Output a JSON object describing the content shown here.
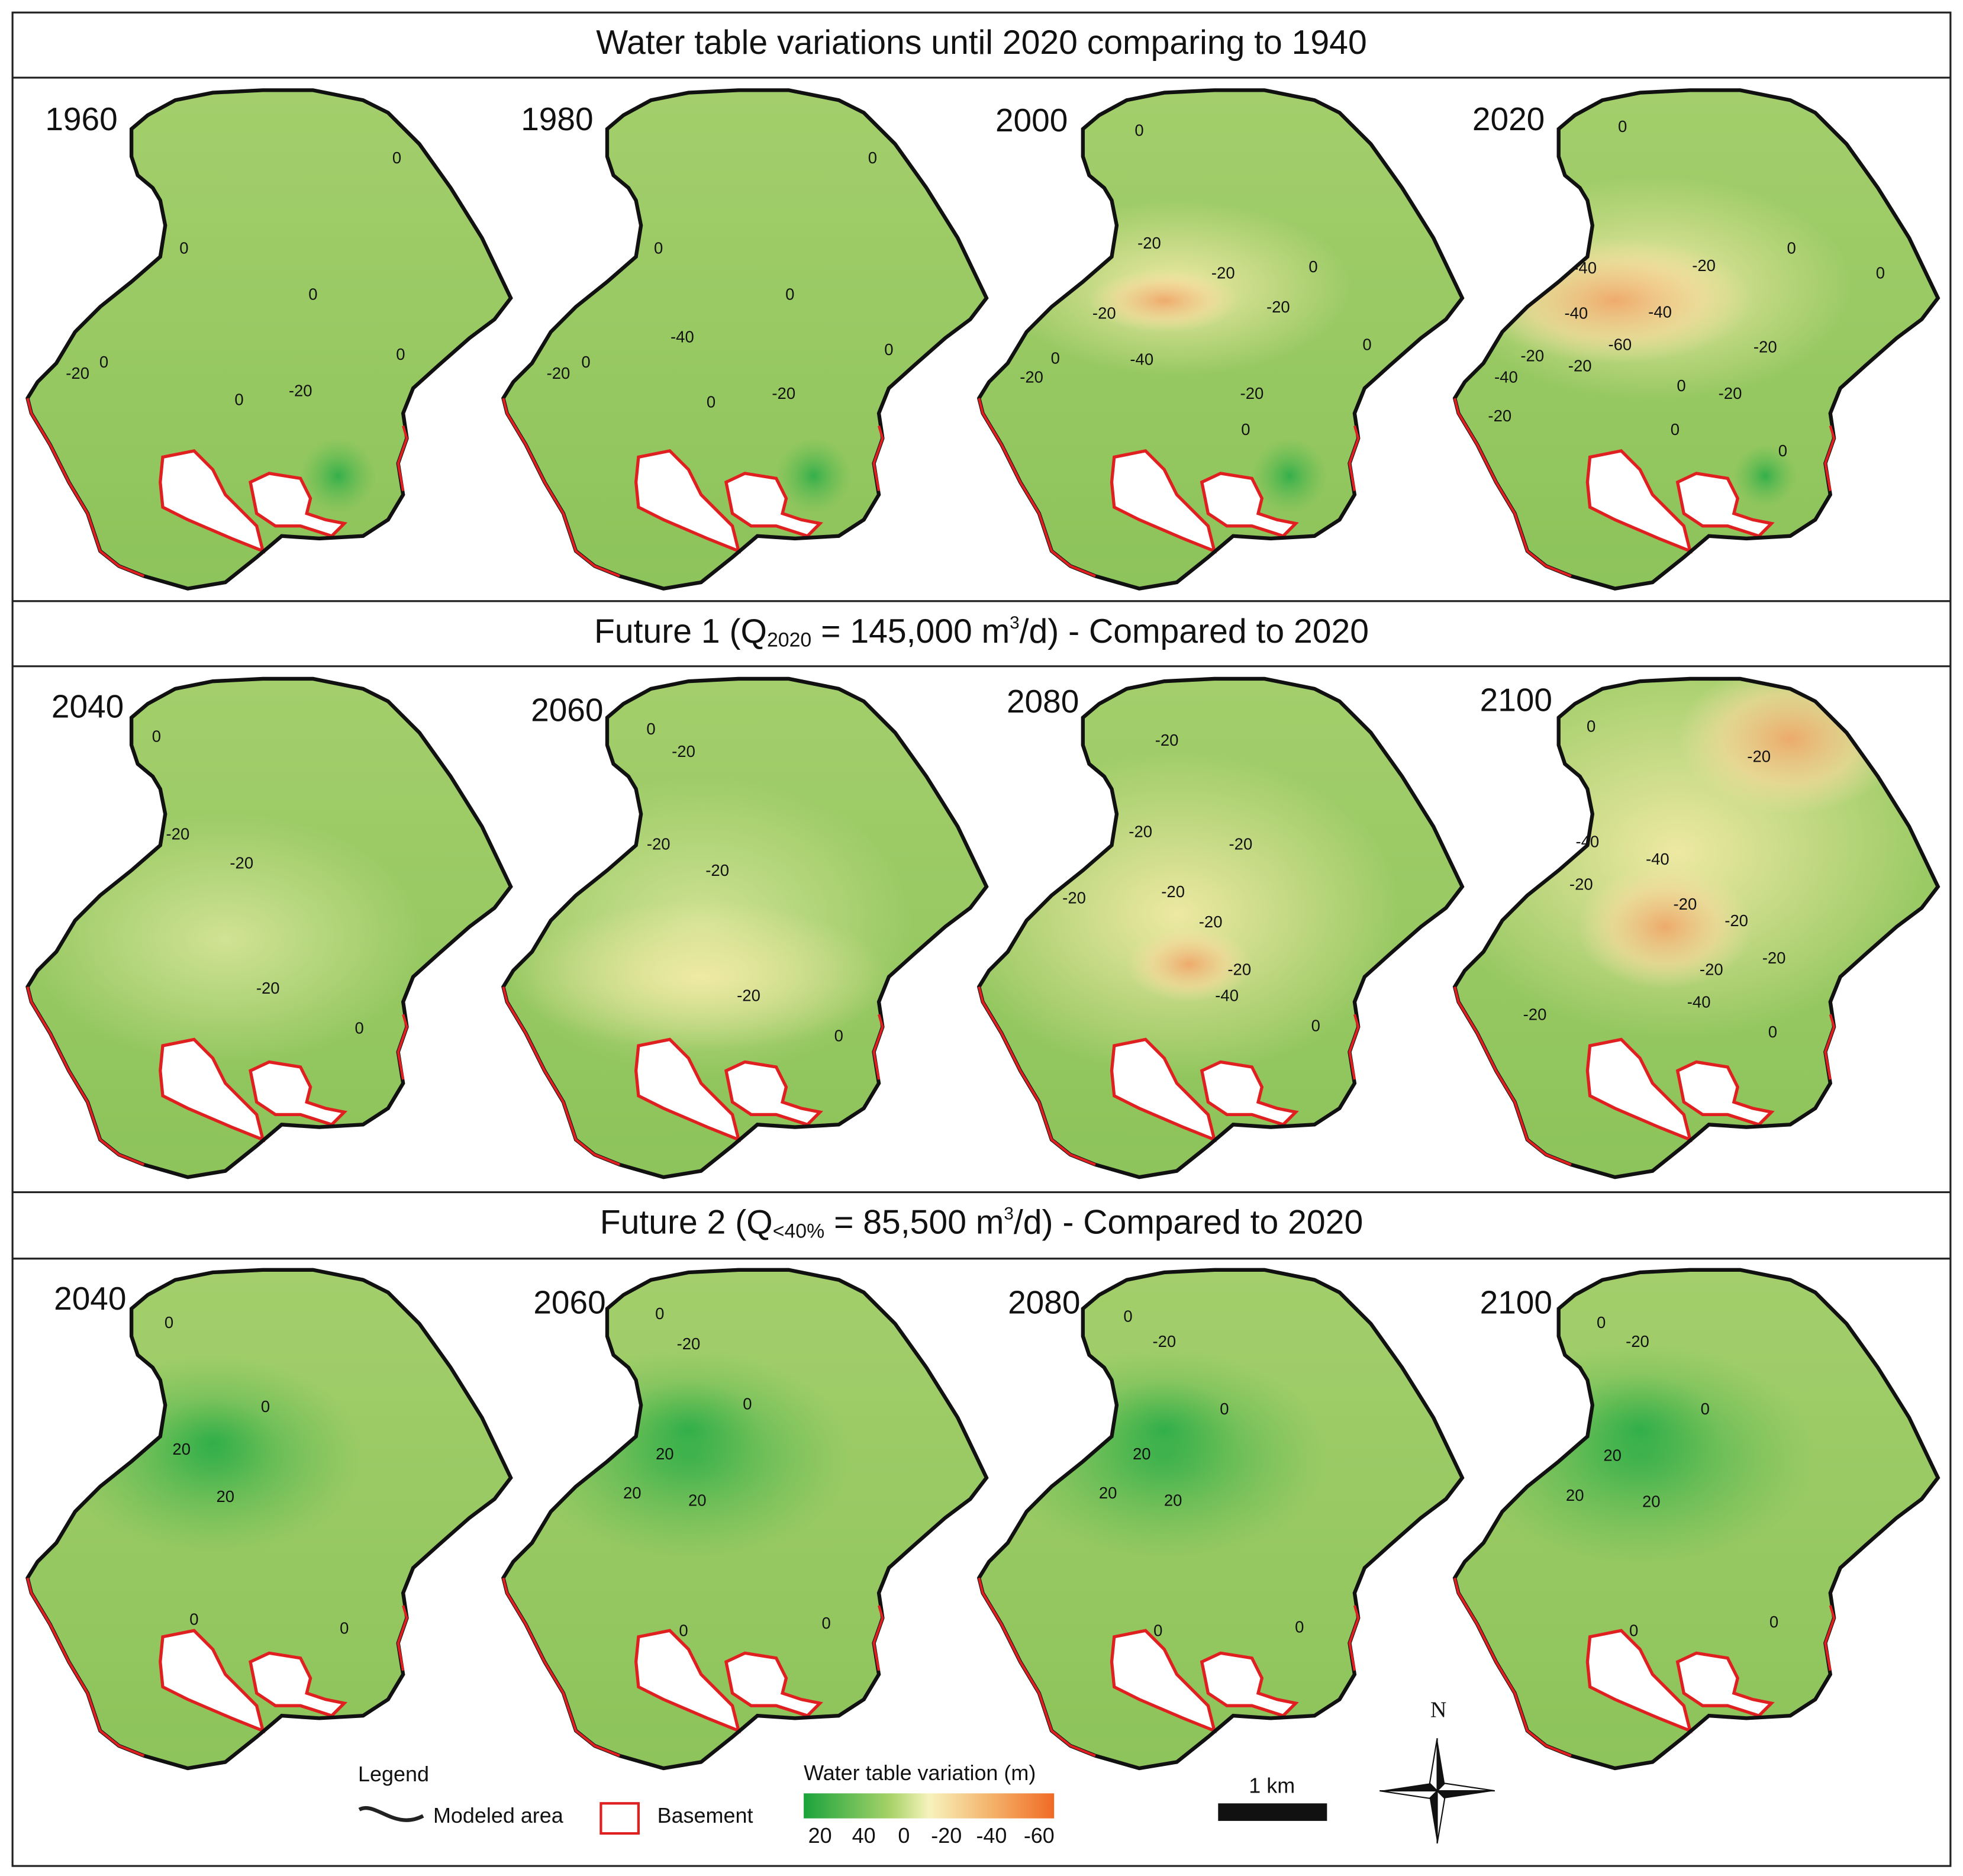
{
  "sections": [
    {
      "title": [
        "Water table variations until 2020 comparing to 1940"
      ],
      "panels": [
        {
          "year": "1960",
          "contours": [
            0,
            0,
            0,
            0,
            -20,
            0,
            0,
            -20
          ]
        },
        {
          "year": "1980",
          "contours": [
            0,
            0,
            0,
            -40,
            0,
            -20,
            0,
            0,
            -20
          ]
        },
        {
          "year": "2000",
          "contours": [
            0,
            -20,
            -20,
            0,
            -20,
            -20,
            0,
            -40,
            0,
            -20,
            -20,
            0
          ]
        },
        {
          "year": "2020",
          "contours": [
            0,
            0,
            -40,
            -20,
            0,
            -40,
            -40,
            -60,
            -20,
            -20,
            -20,
            -40,
            0,
            -20,
            -20,
            0,
            0
          ]
        }
      ]
    },
    {
      "title": [
        "Future 1 (Q",
        "2020",
        " = 145,000 m",
        "3",
        "/d) - Compared to 2020"
      ],
      "panels": [
        {
          "year": "2040",
          "contours": [
            0,
            -20,
            -20,
            -20,
            0
          ]
        },
        {
          "year": "2060",
          "contours": [
            0,
            -20,
            -20,
            -20,
            -20,
            0
          ]
        },
        {
          "year": "2080",
          "contours": [
            -20,
            -20,
            -20,
            -20,
            -20,
            -20,
            -20,
            -40,
            0
          ]
        },
        {
          "year": "2100",
          "contours": [
            0,
            -20,
            -40,
            -40,
            -20,
            -20,
            -20,
            -20,
            -20,
            -40,
            -20,
            0
          ]
        }
      ]
    },
    {
      "title": [
        "Future 2 (Q",
        "<40%",
        " = 85,500 m",
        "3",
        "/d) - Compared to 2020"
      ],
      "panels": [
        {
          "year": "2040",
          "contours": [
            0,
            0,
            20,
            20,
            0,
            0
          ]
        },
        {
          "year": "2060",
          "contours": [
            0,
            -20,
            0,
            20,
            20,
            20,
            0,
            0
          ]
        },
        {
          "year": "2080",
          "contours": [
            0,
            -20,
            0,
            20,
            20,
            20,
            0,
            0
          ]
        },
        {
          "year": "2100",
          "contours": [
            0,
            -20,
            0,
            20,
            20,
            20,
            0,
            0
          ]
        }
      ]
    }
  ],
  "legend": {
    "title": "Legend",
    "modeled_area": "Modeled area",
    "basement": "Basement",
    "colorbar_title": "Water table variation (m)",
    "colorbar_labels": [
      20,
      40,
      0,
      -20,
      -40,
      -60
    ],
    "scale": "1 km",
    "north": "N"
  }
}
